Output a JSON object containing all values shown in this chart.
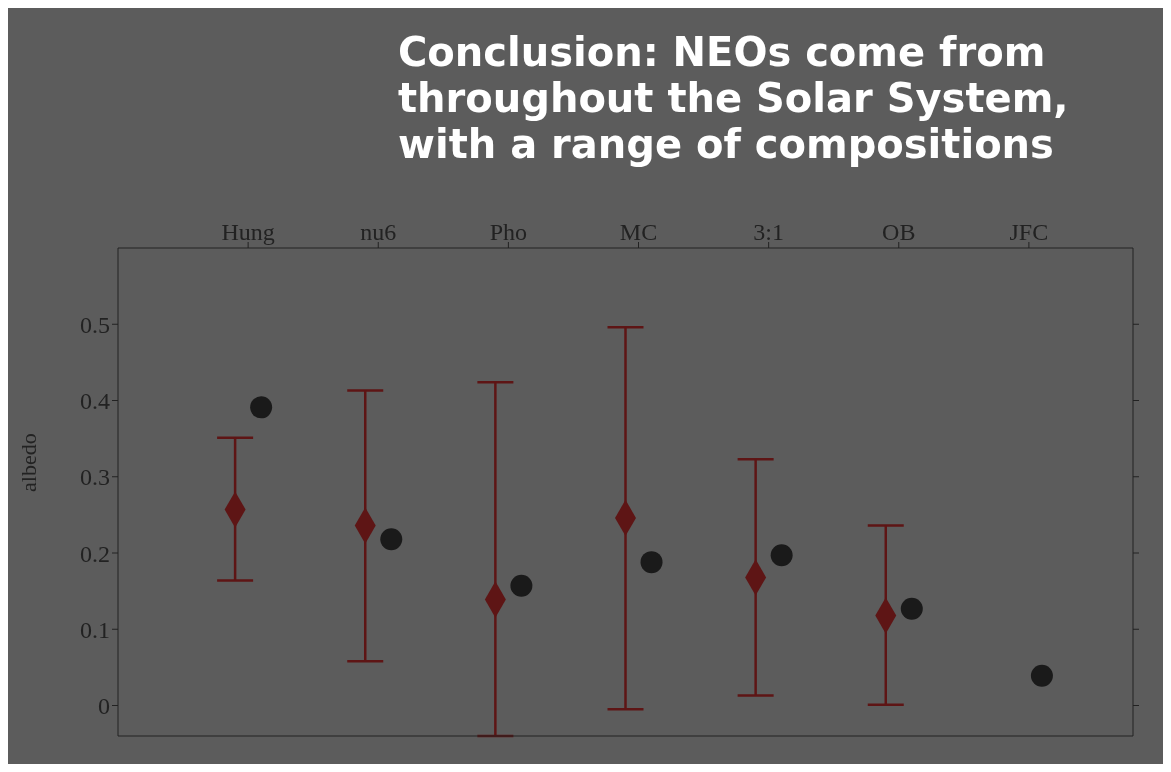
{
  "chart_data": {
    "type": "scatter",
    "ylabel": "albedo",
    "annotations": [
      "Conclusion: NEOs come from throughout the Solar System, with a range of compositions"
    ],
    "categories": [
      "Hung",
      "nu6",
      "Pho",
      "MC",
      "3:1",
      "OB",
      "JFC"
    ],
    "ylim": [
      -0.04,
      0.6
    ],
    "yticks": [
      0,
      0.1,
      0.2,
      0.3,
      0.4,
      0.5
    ],
    "grid": false,
    "legend": false,
    "series": [
      {
        "color": "#5e1515",
        "marker": "diamond",
        "values": [
          0.257,
          0.236,
          0.139,
          0.246,
          0.168,
          0.118,
          null
        ],
        "errors": [
          [
            0.164,
            0.351
          ],
          [
            0.058,
            0.413
          ],
          [
            -0.04,
            0.424
          ],
          [
            -0.005,
            0.496
          ],
          [
            0.013,
            0.323
          ],
          [
            0.001,
            0.236
          ],
          null
        ]
      },
      {
        "color": "#1a1a1a",
        "marker": "circle",
        "values": [
          0.391,
          0.218,
          0.157,
          0.188,
          0.197,
          0.127,
          0.039
        ]
      }
    ]
  }
}
